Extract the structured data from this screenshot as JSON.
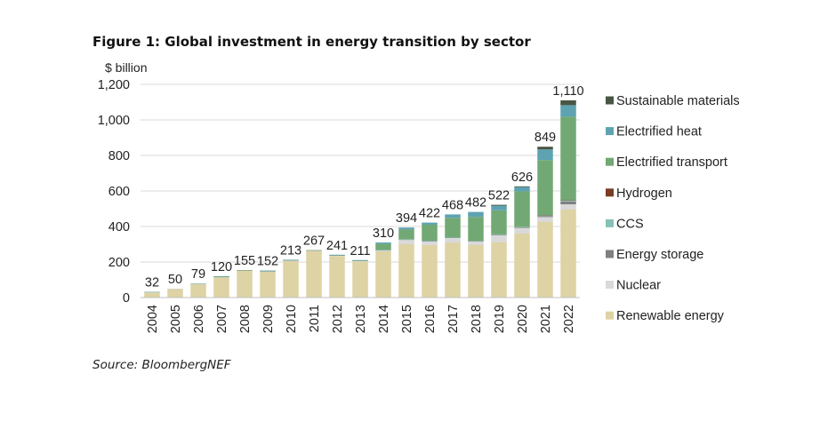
{
  "title": "Figure 1: Global investment in energy transition by sector",
  "source": "Source: BloombergNEF",
  "chart_data": {
    "type": "bar",
    "stacked": true,
    "title": "Figure 1: Global investment in energy transition by sector",
    "ylabel": "$ billion",
    "xlabel": "",
    "ylim": [
      0,
      1200
    ],
    "yticks": [
      0,
      200,
      400,
      600,
      800,
      1000,
      1200
    ],
    "ytick_labels": [
      "0",
      "200",
      "400",
      "600",
      "800",
      "1,000",
      "1,200"
    ],
    "grid": true,
    "legend_position": "right",
    "categories": [
      "2004",
      "2005",
      "2006",
      "2007",
      "2008",
      "2009",
      "2010",
      "2011",
      "2012",
      "2013",
      "2014",
      "2015",
      "2016",
      "2017",
      "2018",
      "2019",
      "2020",
      "2021",
      "2022"
    ],
    "totals": [
      32,
      50,
      79,
      120,
      155,
      152,
      213,
      267,
      241,
      211,
      310,
      394,
      422,
      468,
      482,
      522,
      626,
      849,
      1110
    ],
    "total_labels": [
      "32",
      "50",
      "79",
      "120",
      "155",
      "152",
      "213",
      "267",
      "241",
      "211",
      "310",
      "394",
      "422",
      "468",
      "482",
      "522",
      "626",
      "849",
      "1,110"
    ],
    "series": [
      {
        "name": "Renewable energy",
        "color": "#ddd3a4",
        "values": [
          30,
          49,
          77,
          114,
          150,
          145,
          205,
          262,
          234,
          204,
          261,
          300,
          296,
          310,
          295,
          312,
          360,
          425,
          495
        ]
      },
      {
        "name": "Nuclear",
        "color": "#d9d9d9",
        "values": [
          1,
          1,
          1,
          2,
          3,
          3,
          4,
          3,
          3,
          3,
          5,
          25,
          20,
          25,
          20,
          38,
          32,
          28,
          30
        ]
      },
      {
        "name": "Energy storage",
        "color": "#7f7f7f",
        "values": [
          0,
          0,
          0,
          1,
          1,
          1,
          1,
          1,
          1,
          1,
          1,
          2,
          2,
          3,
          3,
          3,
          4,
          6,
          16
        ]
      },
      {
        "name": "CCS",
        "color": "#86c1b7",
        "values": [
          0,
          0,
          0,
          0,
          0,
          1,
          1,
          0,
          1,
          1,
          1,
          1,
          2,
          1,
          1,
          3,
          2,
          4,
          6
        ]
      },
      {
        "name": "Hydrogen",
        "color": "#7a3c23",
        "values": [
          0,
          0,
          0,
          0,
          0,
          0,
          0,
          0,
          0,
          0,
          0,
          0,
          0,
          0,
          0,
          0,
          0,
          1,
          1
        ]
      },
      {
        "name": "Electrified transport",
        "color": "#72a874",
        "values": [
          0,
          0,
          0,
          1,
          1,
          1,
          1,
          1,
          1,
          1,
          34,
          55,
          90,
          110,
          135,
          135,
          200,
          310,
          470
        ]
      },
      {
        "name": "Electrified heat",
        "color": "#5ea3b1",
        "values": [
          1,
          0,
          1,
          2,
          0,
          1,
          1,
          0,
          1,
          1,
          8,
          11,
          12,
          19,
          28,
          26,
          24,
          60,
          65
        ]
      },
      {
        "name": "Sustainable materials",
        "color": "#4a5544",
        "values": [
          0,
          0,
          0,
          0,
          0,
          0,
          0,
          0,
          0,
          0,
          0,
          0,
          0,
          0,
          0,
          5,
          4,
          15,
          27
        ]
      }
    ]
  }
}
